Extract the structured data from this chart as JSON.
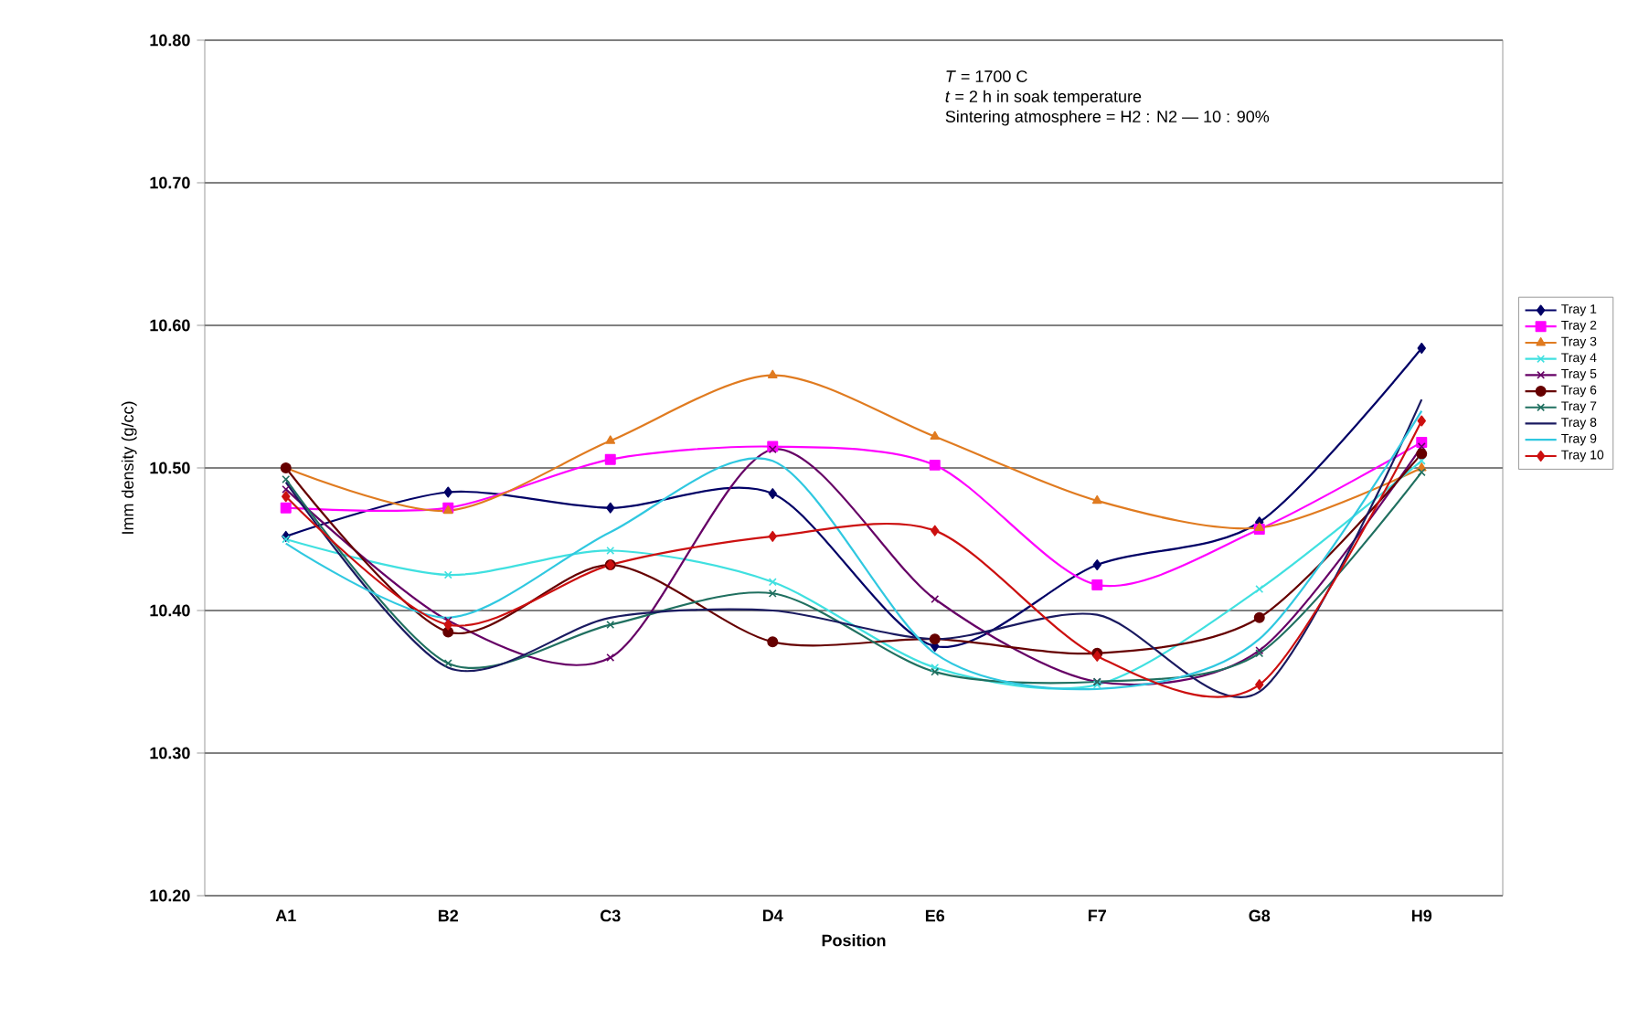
{
  "chart_data": {
    "type": "line",
    "xlabel": "Position",
    "ylabel": "Imm density (g/cc)",
    "categories": [
      "A1",
      "B2",
      "C3",
      "D4",
      "E6",
      "F7",
      "G8",
      "H9"
    ],
    "ylim": [
      10.2,
      10.8
    ],
    "yticks": [
      {
        "value": 10.2,
        "label": "10.20"
      },
      {
        "value": 10.3,
        "label": "10.30"
      },
      {
        "value": 10.4,
        "label": "10.40"
      },
      {
        "value": 10.5,
        "label": "10.50"
      },
      {
        "value": 10.6,
        "label": "10.60"
      },
      {
        "value": 10.7,
        "label": "10.70"
      },
      {
        "value": 10.8,
        "label": "10.80"
      }
    ],
    "grid": "y",
    "legend": "right",
    "annotations": [
      "*T* = 1700 C",
      "*t* = 2 h in soak temperature",
      "Sintering atmosphere = H2 : N2 — 10 : 90%"
    ],
    "series": [
      {
        "name": "Tray 1",
        "color": "#000066",
        "marker": "diamond",
        "values": [
          10.452,
          10.483,
          10.472,
          10.482,
          10.375,
          10.432,
          10.462,
          10.584
        ]
      },
      {
        "name": "Tray 2",
        "color": "#ff00ff",
        "marker": "square",
        "values": [
          10.472,
          10.472,
          10.506,
          10.515,
          10.502,
          10.418,
          10.457,
          10.518
        ]
      },
      {
        "name": "Tray 3",
        "color": "#e07b20",
        "marker": "triangle",
        "values": [
          10.5,
          10.47,
          10.519,
          10.565,
          10.522,
          10.477,
          10.458,
          10.5
        ]
      },
      {
        "name": "Tray 4",
        "color": "#40e0e0",
        "marker": "cross",
        "values": [
          10.45,
          10.425,
          10.442,
          10.42,
          10.36,
          10.348,
          10.415,
          10.505
        ]
      },
      {
        "name": "Tray 5",
        "color": "#660066",
        "marker": "cross",
        "values": [
          10.485,
          10.393,
          10.367,
          10.513,
          10.408,
          10.35,
          10.372,
          10.515
        ]
      },
      {
        "name": "Tray 6",
        "color": "#660000",
        "marker": "circle",
        "values": [
          10.5,
          10.385,
          10.432,
          10.378,
          10.38,
          10.37,
          10.395,
          10.51
        ]
      },
      {
        "name": "Tray 7",
        "color": "#207060",
        "marker": "cross",
        "values": [
          10.492,
          10.363,
          10.39,
          10.412,
          10.357,
          10.35,
          10.37,
          10.497
        ]
      },
      {
        "name": "Tray 8",
        "color": "#1a1a60",
        "marker": "none",
        "values": [
          10.49,
          10.36,
          10.395,
          10.4,
          10.38,
          10.397,
          10.343,
          10.548
        ]
      },
      {
        "name": "Tray 9",
        "color": "#30c8e0",
        "marker": "none",
        "values": [
          10.447,
          10.395,
          10.455,
          10.505,
          10.37,
          10.345,
          10.38,
          10.54
        ]
      },
      {
        "name": "Tray 10",
        "color": "#cc1010",
        "marker": "diamond",
        "values": [
          10.48,
          10.39,
          10.432,
          10.452,
          10.456,
          10.368,
          10.348,
          10.533
        ]
      }
    ]
  }
}
